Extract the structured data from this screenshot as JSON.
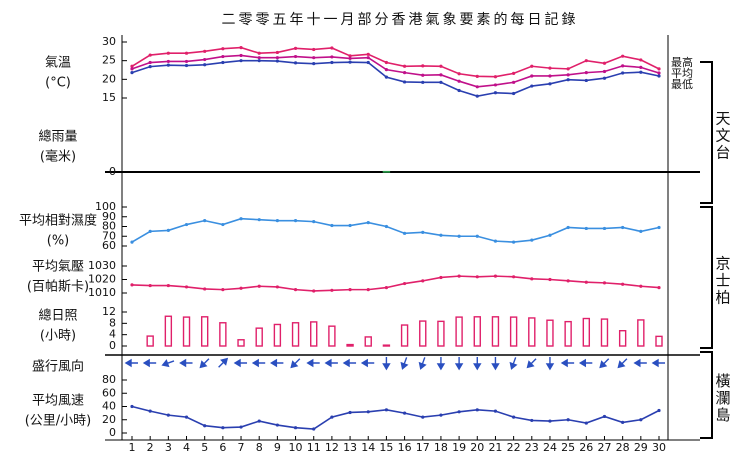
{
  "title": "二零零五年十一月部分香港氣象要素的每日記錄",
  "x_axis": {
    "categories": [
      1,
      2,
      3,
      4,
      5,
      6,
      7,
      8,
      9,
      10,
      11,
      12,
      13,
      14,
      15,
      16,
      17,
      18,
      19,
      20,
      21,
      22,
      23,
      24,
      25,
      26,
      27,
      28,
      29,
      30
    ]
  },
  "stations": [
    "天文台",
    "京士柏",
    "橫瀾島"
  ],
  "chart_data": [
    {
      "type": "line",
      "label": [
        "氣溫",
        "(°C)"
      ],
      "ylim": [
        15,
        30
      ],
      "yticks": [
        15,
        20,
        25,
        30
      ],
      "series": [
        {
          "name": "最高",
          "color": "#e0206a",
          "values": [
            23.5,
            26.5,
            27,
            27,
            27.5,
            28.2,
            28.5,
            27,
            27.2,
            28.3,
            28,
            28.4,
            26.3,
            26.7,
            24.5,
            23.5,
            23.6,
            23.5,
            21.5,
            20.8,
            20.7,
            21.6,
            23.5,
            23,
            22.8,
            25,
            24.3,
            26.2,
            25.2,
            22.8
          ]
        },
        {
          "name": "平均",
          "color": "#c0108a",
          "values": [
            22.8,
            24.5,
            24.8,
            24.8,
            25.3,
            26.1,
            26.4,
            25.8,
            25.8,
            26.1,
            25.8,
            26,
            25.6,
            25.8,
            22.6,
            21.8,
            21.1,
            21.2,
            19.5,
            18,
            18.5,
            19.2,
            20.9,
            20.9,
            21.2,
            21.8,
            22.1,
            23.6,
            23.2,
            21.7
          ]
        },
        {
          "name": "最低",
          "color": "#2a3fb0",
          "values": [
            21.8,
            23.4,
            23.8,
            23.7,
            23.9,
            24.5,
            25,
            25,
            24.9,
            24.4,
            24.2,
            24.5,
            24.6,
            24.5,
            20.6,
            19.3,
            19.2,
            19.2,
            17,
            15.5,
            16.4,
            16.2,
            18.2,
            18.8,
            19.9,
            19.7,
            20.3,
            21.7,
            21.9,
            20.9
          ]
        }
      ]
    },
    {
      "type": "bar",
      "label": [
        "總雨量",
        "(毫米)"
      ],
      "ylim": [
        0,
        10
      ],
      "yticks": [
        0
      ],
      "color": "#2a9a4a",
      "values": [
        0,
        0,
        0,
        0,
        0,
        0,
        0,
        0,
        0,
        0,
        0,
        0,
        0,
        0,
        0.1,
        0,
        0,
        0,
        0,
        0,
        0,
        0,
        0,
        0,
        0,
        0,
        0,
        0,
        0,
        0
      ]
    },
    {
      "type": "line",
      "label": [
        "平均相對濕度",
        "(%)"
      ],
      "ylim": [
        60,
        100
      ],
      "yticks": [
        60,
        70,
        80,
        90,
        100
      ],
      "series": [
        {
          "color": "#3a8fe0",
          "values": [
            64,
            75,
            76,
            82,
            86,
            82,
            88,
            87,
            86,
            86,
            85,
            81,
            81,
            84,
            80,
            73,
            74,
            71,
            70,
            70,
            65,
            64,
            66,
            71,
            79,
            78,
            78,
            79,
            75,
            79
          ]
        }
      ]
    },
    {
      "type": "line",
      "label": [
        "平均氣壓",
        "(百帕斯卡)"
      ],
      "ylim": [
        1010,
        1030
      ],
      "yticks": [
        1010,
        1020,
        1030
      ],
      "series": [
        {
          "color": "#e0206a",
          "values": [
            1016,
            1015.5,
            1015.5,
            1014.5,
            1013,
            1012.5,
            1013.5,
            1015,
            1014.5,
            1012.5,
            1011.5,
            1012,
            1012.5,
            1012.5,
            1014,
            1017,
            1019,
            1021.5,
            1022.5,
            1022,
            1022.5,
            1022,
            1020.5,
            1020,
            1019,
            1018,
            1017.5,
            1016.5,
            1015,
            1014
          ]
        }
      ]
    },
    {
      "type": "bar",
      "label": [
        "總日照",
        "(小時)"
      ],
      "ylim": [
        0,
        12
      ],
      "yticks": [
        0,
        4,
        8,
        12
      ],
      "color": "#e0206a",
      "values": [
        0,
        3.5,
        10.5,
        10.2,
        10.3,
        8.2,
        2.2,
        6.3,
        7.6,
        8.2,
        8.5,
        7,
        0.5,
        3.2,
        0.3,
        7.4,
        8.8,
        8.7,
        10.2,
        10.3,
        10.3,
        10.2,
        9.9,
        9.1,
        8.6,
        9.7,
        9.5,
        5.4,
        9.2,
        3.4
      ]
    },
    {
      "type": "arrow",
      "label": [
        "盛行風向"
      ],
      "color": "#2a4fc0",
      "values": [
        90,
        90,
        70,
        90,
        45,
        225,
        90,
        90,
        90,
        45,
        90,
        90,
        90,
        90,
        0,
        20,
        20,
        0,
        0,
        0,
        0,
        20,
        45,
        0,
        90,
        90,
        45,
        45,
        90,
        90
      ]
    },
    {
      "type": "line",
      "label": [
        "平均風速",
        "(公里/小時)"
      ],
      "ylim": [
        0,
        80
      ],
      "yticks": [
        0,
        20,
        40,
        60,
        80
      ],
      "series": [
        {
          "color": "#2a3fb0",
          "values": [
            40,
            33,
            27,
            24,
            11,
            8,
            9,
            18,
            12,
            8,
            6,
            24,
            31,
            32,
            35,
            30,
            24,
            27,
            32,
            35,
            33,
            24,
            19,
            18,
            20,
            15,
            25,
            16,
            20,
            34
          ]
        }
      ]
    }
  ]
}
